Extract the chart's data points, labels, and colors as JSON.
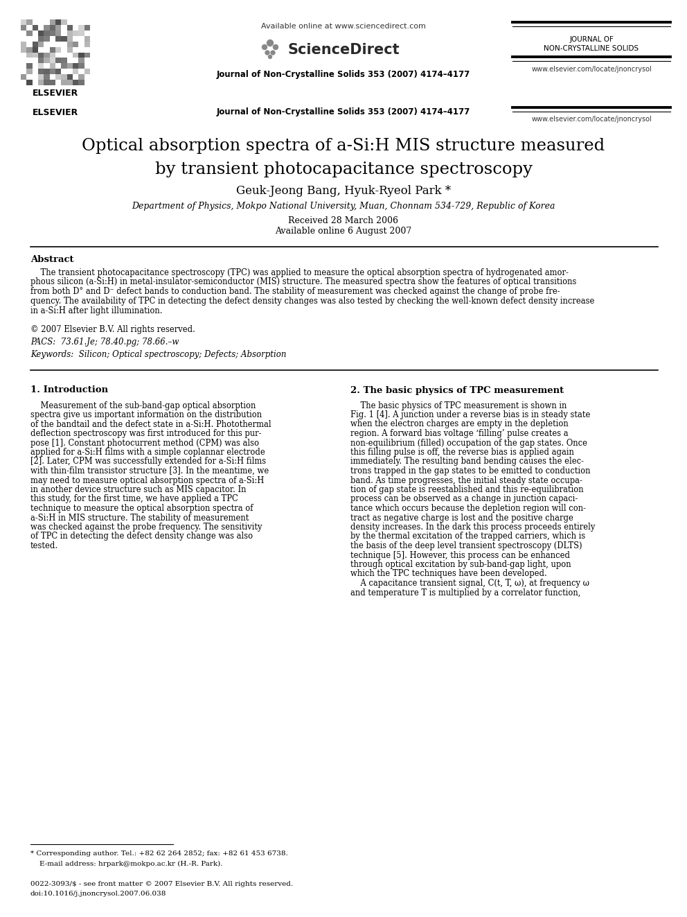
{
  "bg_color": "#ffffff",
  "header": {
    "available_online": "Available online at www.sciencedirect.com",
    "sciencedirect": "ScienceDirect",
    "journal_line": "Journal of Non-Crystalline Solids 353 (2007) 4174–4177",
    "journal_name_line1": "JOURNAL OF",
    "journal_name_line2": "NON-CRYSTALLINE SOLIDS",
    "elsevier_text": "ELSEVIER",
    "website": "www.elsevier.com/locate/jnoncrysol"
  },
  "title_line1": "Optical absorption spectra of a-Si:H MIS structure measured",
  "title_line2": "by transient photocapacitance spectroscopy",
  "authors": "Geuk-Jeong Bang, Hyuk-Ryeol Park *",
  "affiliation": "Department of Physics, Mokpo National University, Muan, Chonnam 534-729, Republic of Korea",
  "received": "Received 28 March 2006",
  "available": "Available online 6 August 2007",
  "abstract_title": "Abstract",
  "abstract_line1": "    The transient photocapacitance spectroscopy (TPC) was applied to measure the optical absorption spectra of hydrogenated amor-",
  "abstract_line2": "phous silicon (a-Si:H) in metal-insulator-semiconductor (MIS) structure. The measured spectra show the features of optical transitions",
  "abstract_line3": "from both D° and D⁻ defect bands to conduction band. The stability of measurement was checked against the change of probe fre-",
  "abstract_line4": "quency. The availability of TPC in detecting the defect density changes was also tested by checking the well-known defect density increase",
  "abstract_line5": "in a-Si:H after light illumination.",
  "abstract_line6": "© 2007 Elsevier B.V. All rights reserved.",
  "pacs": "PACS:  73.61.Je; 78.40.pg; 78.66.–w",
  "keywords": "Keywords:  Silicon; Optical spectroscopy; Defects; Absorption",
  "sec1_title": "1. Introduction",
  "sec1_lines": [
    "    Measurement of the sub-band-gap optical absorption",
    "spectra give us important information on the distribution",
    "of the bandtail and the defect state in a-Si:H. Photothermal",
    "deflection spectroscopy was first introduced for this pur-",
    "pose [1]. Constant photocurrent method (CPM) was also",
    "applied for a-Si:H films with a simple coplannar electrode",
    "[2]. Later, CPM was successfully extended for a-Si:H films",
    "with thin-film transistor structure [3]. In the meantime, we",
    "may need to measure optical absorption spectra of a-Si:H",
    "in another device structure such as MIS capacitor. In",
    "this study, for the first time, we have applied a TPC",
    "technique to measure the optical absorption spectra of",
    "a-Si:H in MIS structure. The stability of measurement",
    "was checked against the probe frequency. The sensitivity",
    "of TPC in detecting the defect density change was also",
    "tested."
  ],
  "sec2_title": "2. The basic physics of TPC measurement",
  "sec2_lines": [
    "    The basic physics of TPC measurement is shown in",
    "Fig. 1 [4]. A junction under a reverse bias is in steady state",
    "when the electron charges are empty in the depletion",
    "region. A forward bias voltage ‘filling’ pulse creates a",
    "non-equilibrium (filled) occupation of the gap states. Once",
    "this filling pulse is off, the reverse bias is applied again",
    "immediately. The resulting band bending causes the elec-",
    "trons trapped in the gap states to be emitted to conduction",
    "band. As time progresses, the initial steady state occupa-",
    "tion of gap state is reestablished and this re-equilibration",
    "process can be observed as a change in junction capaci-",
    "tance which occurs because the depletion region will con-",
    "tract as negative charge is lost and the positive charge",
    "density increases. In the dark this process proceeds entirely",
    "by the thermal excitation of the trapped carriers, which is",
    "the basis of the deep level transient spectroscopy (DLTS)",
    "technique [5]. However, this process can be enhanced",
    "through optical excitation by sub-band-gap light, upon",
    "which the TPC techniques have been developed.",
    "    A capacitance transient signal, C(t, T, ω), at frequency ω",
    "and temperature T is multiplied by a correlator function,"
  ],
  "footer_note": "* Corresponding author. Tel.: +82 62 264 2852; fax: +82 61 453 6738.",
  "footer_email": "    E-mail address: hrpark@mokpo.ac.kr (H.-R. Park).",
  "footer_issn": "0022-3093/$ - see front matter © 2007 Elsevier B.V. All rights reserved.",
  "footer_doi": "doi:10.1016/j.jnoncrysol.2007.06.038",
  "fig_width": 9.92,
  "fig_height": 13.23,
  "dpi": 100
}
